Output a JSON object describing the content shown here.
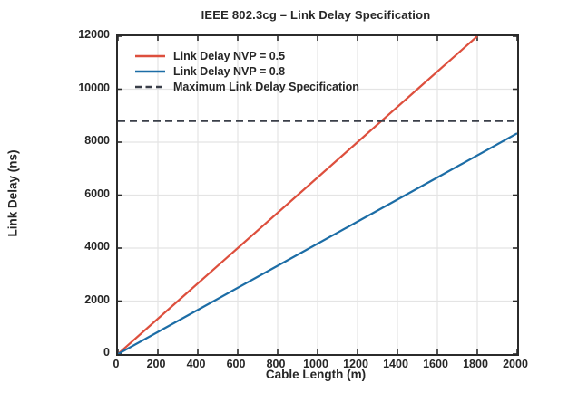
{
  "chart_data": {
    "type": "line",
    "title": "IEEE 802.3cg – Link Delay Specification",
    "xlabel": "Cable Length (m)",
    "ylabel": "Link Delay (ns)",
    "xlim": [
      0,
      2000
    ],
    "ylim": [
      0,
      12000
    ],
    "xticks": [
      0,
      200,
      400,
      600,
      800,
      1000,
      1200,
      1400,
      1600,
      1800,
      2000
    ],
    "yticks": [
      0,
      2000,
      4000,
      6000,
      8000,
      10000,
      12000
    ],
    "grid": true,
    "legend_position": "upper-left",
    "colors": {
      "background": "#ffffff",
      "box": "#2b2b2b",
      "grid": "#e4e4e4",
      "axis_text": "#262626"
    },
    "series": [
      {
        "name": "Link Delay NVP = 0.5",
        "color": "#dd4f3d",
        "style": "solid",
        "x": [
          0,
          300,
          600,
          900,
          1200,
          1500,
          1800
        ],
        "y": [
          0,
          2000,
          4000,
          6000,
          8000,
          10000,
          12000
        ]
      },
      {
        "name": "Link Delay NVP = 0.8",
        "color": "#1c6da6",
        "style": "solid",
        "x": [
          0,
          400,
          800,
          1200,
          1600,
          2000
        ],
        "y": [
          0,
          1667,
          3333,
          5000,
          6667,
          8333
        ]
      },
      {
        "name": "Maximum Link Delay Specification",
        "color": "#3a3f49",
        "style": "dashed",
        "x": [
          0,
          2000
        ],
        "y": [
          8800,
          8800
        ]
      }
    ]
  }
}
